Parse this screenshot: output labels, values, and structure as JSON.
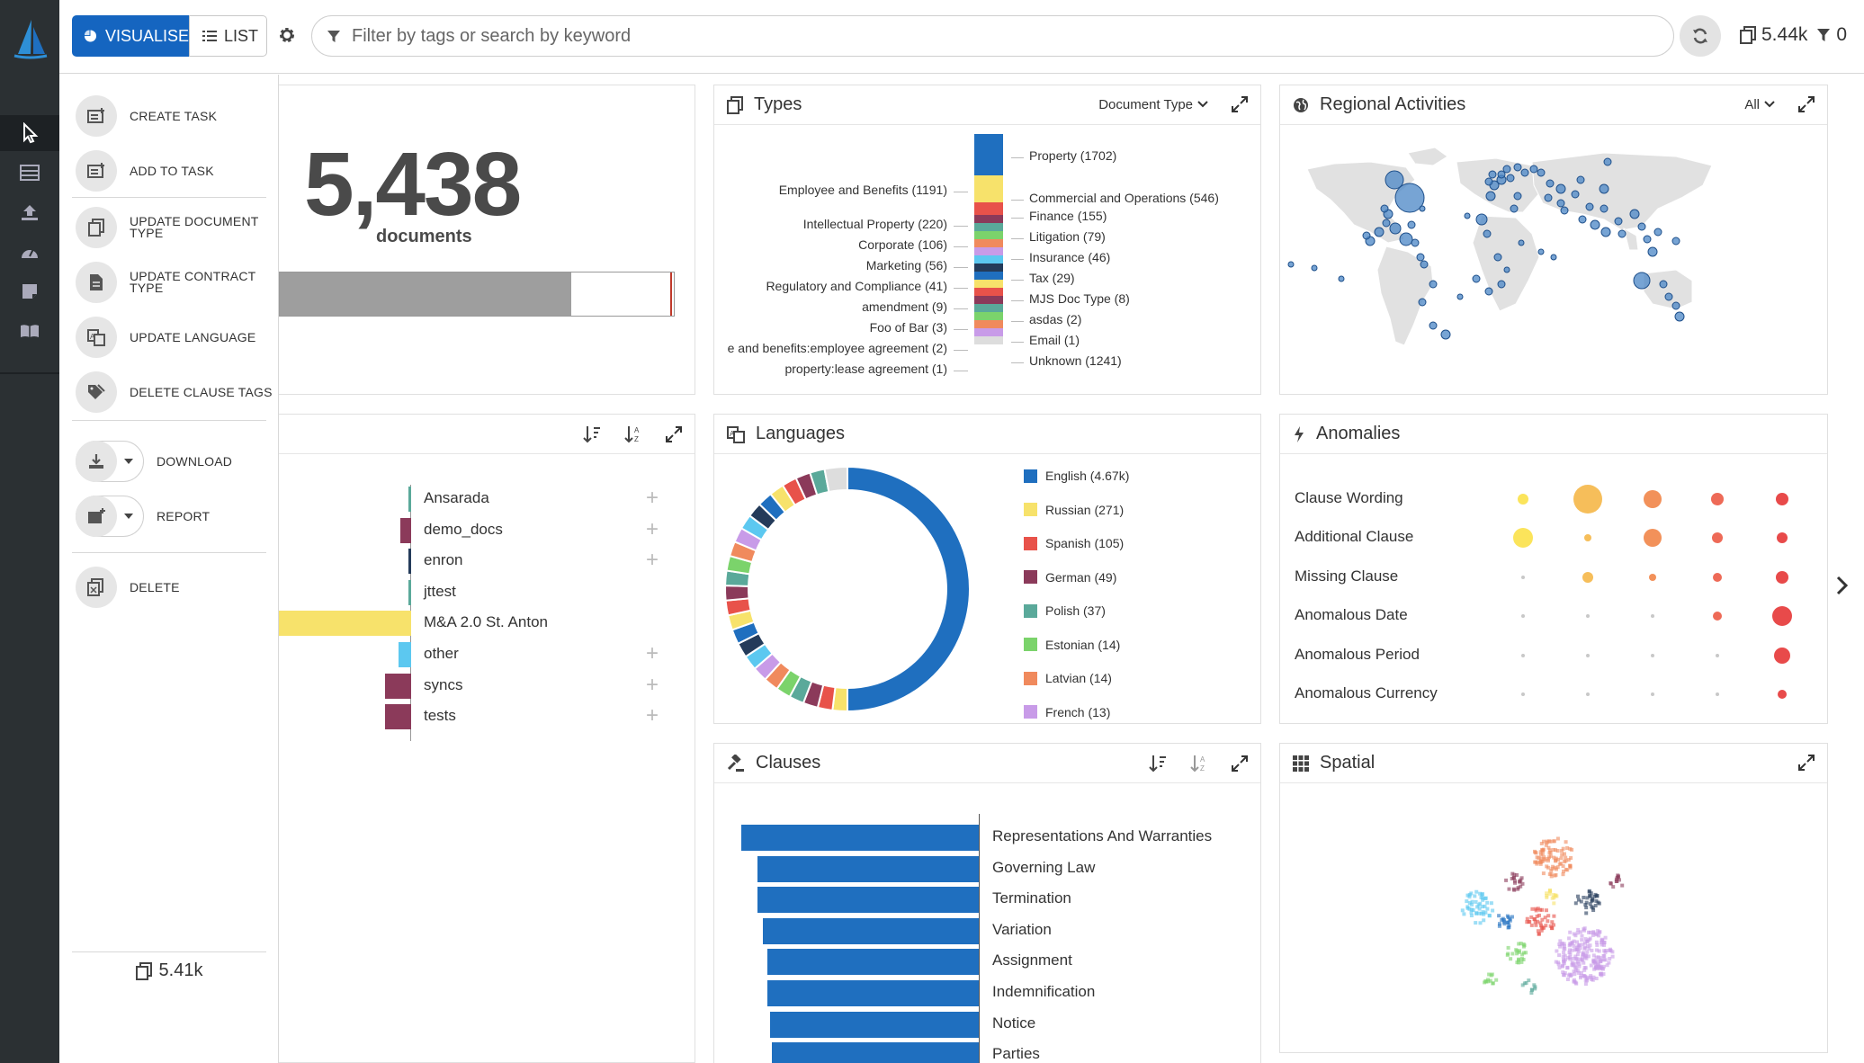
{
  "toolbar": {
    "visualise_label": "VISUALISE",
    "list_label": "LIST",
    "search_placeholder": "Filter by tags or search by keyword",
    "doc_count": "5.44k",
    "filter_count": "0"
  },
  "actions": [
    {
      "label": "CREATE TASK",
      "icon": "task-add-icon"
    },
    {
      "label": "ADD TO TASK",
      "icon": "task-add-icon"
    },
    {
      "label": "UPDATE DOCUMENT\nTYPE",
      "icon": "documents-icon"
    },
    {
      "label": "UPDATE CONTRACT\nTYPE",
      "icon": "file-icon"
    },
    {
      "label": "UPDATE LANGUAGE",
      "icon": "translate-icon"
    },
    {
      "label": "DELETE CLAUSE TAGS",
      "icon": "tags-icon"
    },
    {
      "label": "DOWNLOAD",
      "icon": "download-icon"
    },
    {
      "label": "REPORT",
      "icon": "report-icon"
    },
    {
      "label": "DELETE",
      "icon": "delete-documents-icon"
    }
  ],
  "footer": {
    "count": "5.41k"
  },
  "summary": {
    "number": "5,438",
    "label": "documents",
    "fill_fraction": 0.74
  },
  "types": {
    "title": "Types",
    "dropdown": "Document Type",
    "segments": [
      {
        "label": "Property (1702)",
        "color": "#1f6fbf",
        "side": "right"
      },
      {
        "label": "Employee and Benefits (1191)",
        "color": "#f7e26b",
        "side": "left"
      },
      {
        "label": "Commercial and Operations (546)",
        "color": "#e8524a",
        "side": "right"
      },
      {
        "label": "Intellectual Property (220)",
        "color": "#8b3a5a",
        "side": "left"
      },
      {
        "label": "Finance (155)",
        "color": "#5aa99a",
        "side": "right"
      },
      {
        "label": "Corporate (106)",
        "color": "#7bd36b",
        "side": "left"
      },
      {
        "label": "Litigation (79)",
        "color": "#f08a5d",
        "side": "right"
      },
      {
        "label": "Marketing (56)",
        "color": "#c89be8",
        "side": "left"
      },
      {
        "label": "Insurance (46)",
        "color": "#5cc8f0",
        "side": "right"
      },
      {
        "label": "Regulatory and Compliance (41)",
        "color": "#243b5a",
        "side": "left"
      },
      {
        "label": "Tax (29)",
        "color": "#1f6fbf",
        "side": "right"
      },
      {
        "label": "amendment (9)",
        "color": "#f7e26b",
        "side": "left"
      },
      {
        "label": "MJS Doc Type (8)",
        "color": "#e8524a",
        "side": "right"
      },
      {
        "label": "Foo of Bar (3)",
        "color": "#8b3a5a",
        "side": "left"
      },
      {
        "label": "asdas (2)",
        "color": "#5aa99a",
        "side": "right"
      },
      {
        "label": "e and benefits:employee agreement (2)",
        "color": "#7bd36b",
        "side": "left"
      },
      {
        "label": "Email (1)",
        "color": "#f08a5d",
        "side": "right"
      },
      {
        "label": "property:lease agreement (1)",
        "color": "#c89be8",
        "side": "left"
      },
      {
        "label": "Unknown (1241)",
        "color": "#dddddd",
        "side": "right"
      }
    ]
  },
  "regional": {
    "title": "Regional Activities",
    "dropdown": "All"
  },
  "sources": {
    "items": [
      {
        "label": "Ansarada",
        "value": 0.5,
        "color": "#5aa99a",
        "plus": true
      },
      {
        "label": "demo_docs",
        "value": 12,
        "color": "#8b3a5a",
        "plus": true
      },
      {
        "label": "enron",
        "value": 3,
        "color": "#243b5a",
        "plus": true
      },
      {
        "label": "jttest",
        "value": 2,
        "color": "#5aa99a",
        "plus": false
      },
      {
        "label": "M&A 2.0 St. Anton",
        "value": 150,
        "color": "#f7e26b",
        "plus": false
      },
      {
        "label": "other",
        "value": 14,
        "color": "#5cc8f0",
        "plus": true
      },
      {
        "label": "syncs",
        "value": 30,
        "color": "#8b3a5a",
        "plus": true
      },
      {
        "label": "tests",
        "value": 30,
        "color": "#8b3a5a",
        "plus": true
      }
    ]
  },
  "languages": {
    "title": "Languages",
    "legend": [
      {
        "label": "English (4.67k)",
        "color": "#1f6fbf"
      },
      {
        "label": "Russian (271)",
        "color": "#f7e26b"
      },
      {
        "label": "Spanish (105)",
        "color": "#e8524a"
      },
      {
        "label": "German (49)",
        "color": "#8b3a5a"
      },
      {
        "label": "Polish (37)",
        "color": "#5aa99a"
      },
      {
        "label": "Estonian (14)",
        "color": "#7bd36b"
      },
      {
        "label": "Latvian (14)",
        "color": "#f08a5d"
      },
      {
        "label": "French (13)",
        "color": "#c89be8"
      }
    ]
  },
  "anomalies": {
    "title": "Anomalies",
    "rows": [
      {
        "label": "Clause Wording",
        "sizes": [
          6,
          16,
          10,
          7,
          7
        ]
      },
      {
        "label": "Additional Clause",
        "sizes": [
          11,
          4,
          10,
          6,
          6
        ]
      },
      {
        "label": "Missing Clause",
        "sizes": [
          2,
          6,
          4,
          5,
          7
        ]
      },
      {
        "label": "Anomalous Date",
        "sizes": [
          2,
          2,
          2,
          5,
          11
        ]
      },
      {
        "label": "Anomalous Period",
        "sizes": [
          2,
          2,
          2,
          2,
          9
        ]
      },
      {
        "label": "Anomalous Currency",
        "sizes": [
          2,
          2,
          2,
          2,
          5
        ]
      }
    ],
    "colors": [
      "#fbe45b",
      "#f6be5a",
      "#f2915a",
      "#ee6a57",
      "#e84a4a"
    ]
  },
  "clauses": {
    "title": "Clauses",
    "items": [
      {
        "label": "Representations And Warranties",
        "value": 100
      },
      {
        "label": "Governing Law",
        "value": 93
      },
      {
        "label": "Termination",
        "value": 93
      },
      {
        "label": "Variation",
        "value": 91
      },
      {
        "label": "Assignment",
        "value": 89
      },
      {
        "label": "Indemnification",
        "value": 89
      },
      {
        "label": "Notice",
        "value": 88
      },
      {
        "label": "Parties",
        "value": 87
      }
    ]
  },
  "spatial": {
    "title": "Spatial"
  }
}
